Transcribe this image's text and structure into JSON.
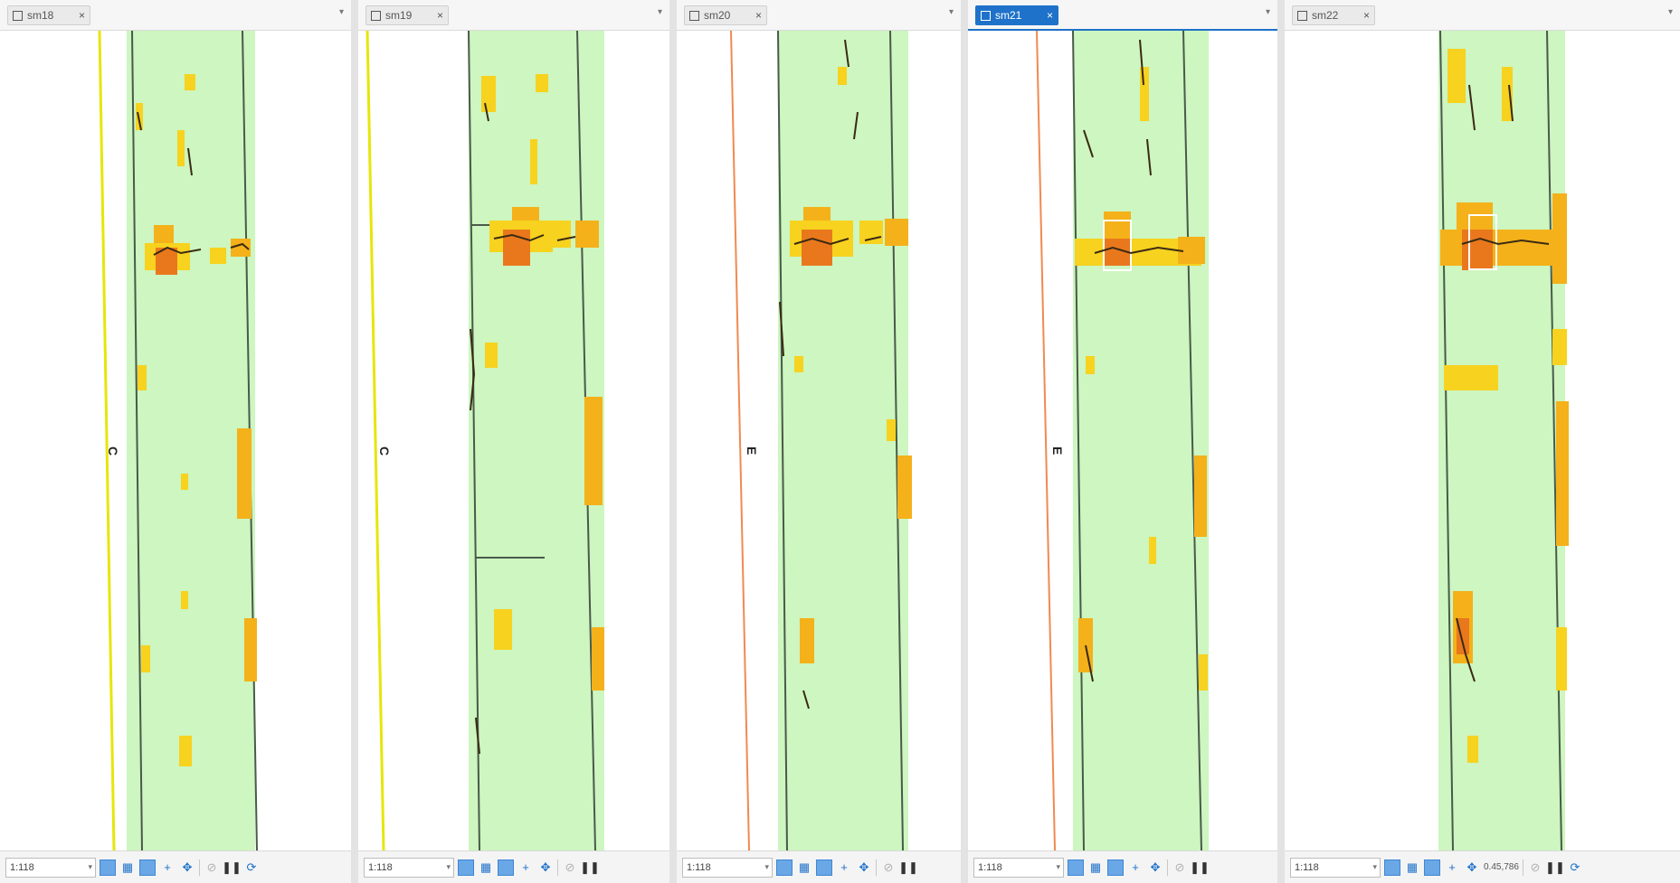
{
  "colors": {
    "road_surface": "#cdf6c0",
    "heat_light": "#f7d21f",
    "heat_mid": "#f4b11a",
    "heat_dark": "#e9781d",
    "crack": "#3a2a14",
    "lane_line": "#4a5a4a",
    "yellow_line": "#e6e60a",
    "orange_line": "#f08a50",
    "tab_active": "#1f72c9"
  },
  "panes": [
    {
      "tab_label": "sm18",
      "active": false,
      "edge_line": "yellow",
      "side_label": "C",
      "scale": "1:118",
      "coords": ""
    },
    {
      "tab_label": "sm19",
      "active": false,
      "edge_line": "yellow",
      "side_label": "C",
      "scale": "1:118",
      "coords": ""
    },
    {
      "tab_label": "sm20",
      "active": false,
      "edge_line": "orange",
      "side_label": "E",
      "scale": "1:118",
      "coords": ""
    },
    {
      "tab_label": "sm21",
      "active": true,
      "edge_line": "orange",
      "side_label": "E",
      "scale": "1:118",
      "coords": ""
    },
    {
      "tab_label": "sm22",
      "active": false,
      "edge_line": "none",
      "side_label": "",
      "scale": "1:118",
      "coords": "0.45,786"
    }
  ],
  "icons": {
    "tab_icon": "map-layer-icon",
    "close": "×",
    "dropdown": "▾",
    "toolbar": [
      "select-icon",
      "grid-icon",
      "layers-icon",
      "crosshair-icon",
      "pan-icon",
      "measure-icon",
      "pause-icon",
      "refresh-icon"
    ]
  }
}
